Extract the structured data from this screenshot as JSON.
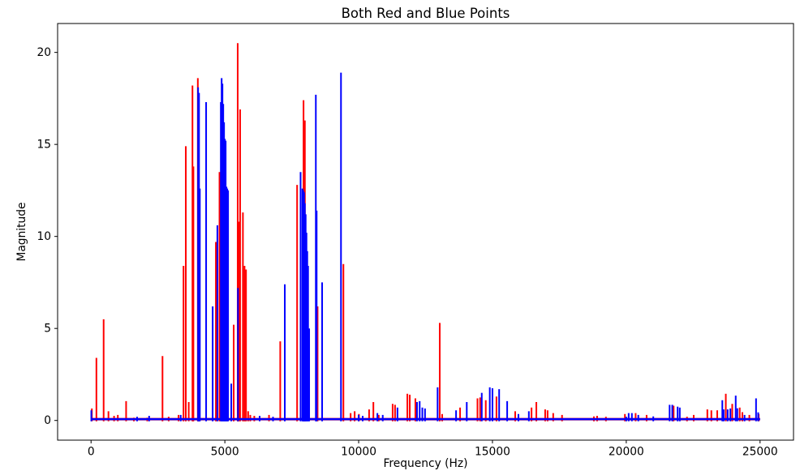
{
  "chart_data": {
    "type": "line",
    "title": "Both Red and Blue Points",
    "xlabel": "Frequency (Hz)",
    "ylabel": "Magnitude",
    "xlim": [
      -1250,
      26250
    ],
    "ylim": [
      -1.07,
      21.57
    ],
    "xticks": [
      0,
      5000,
      10000,
      15000,
      20000,
      25000
    ],
    "yticks": [
      0,
      5,
      10,
      15,
      20
    ],
    "grid": false,
    "legend": null,
    "series": [
      {
        "name": "red",
        "color": "#ff0000",
        "baseline_x": [
          0,
          25000
        ],
        "baseline_mag": 0.07,
        "points": [
          [
            30,
            0.65
          ],
          [
            200,
            3.4
          ],
          [
            470,
            5.5
          ],
          [
            650,
            0.5
          ],
          [
            860,
            0.25
          ],
          [
            1000,
            0.3
          ],
          [
            1310,
            1.05
          ],
          [
            1600,
            0.15
          ],
          [
            2100,
            0.15
          ],
          [
            2670,
            3.5
          ],
          [
            2900,
            0.2
          ],
          [
            3270,
            0.3
          ],
          [
            3455,
            8.4
          ],
          [
            3540,
            14.9
          ],
          [
            3650,
            1.0
          ],
          [
            3790,
            18.2
          ],
          [
            3825,
            13.8
          ],
          [
            3990,
            18.6
          ],
          [
            4020,
            16.4
          ],
          [
            4665,
            9.7
          ],
          [
            4800,
            13.5
          ],
          [
            5330,
            5.2
          ],
          [
            5480,
            20.5
          ],
          [
            5515,
            10.8
          ],
          [
            5570,
            16.9
          ],
          [
            5675,
            11.3
          ],
          [
            5735,
            8.4
          ],
          [
            5790,
            8.2
          ],
          [
            5870,
            0.5
          ],
          [
            5950,
            0.3
          ],
          [
            6100,
            0.25
          ],
          [
            6650,
            0.3
          ],
          [
            7070,
            4.3
          ],
          [
            7700,
            12.8
          ],
          [
            7940,
            17.4
          ],
          [
            7990,
            16.3
          ],
          [
            8465,
            6.2
          ],
          [
            9430,
            8.5
          ],
          [
            9700,
            0.4
          ],
          [
            9850,
            0.5
          ],
          [
            10010,
            0.35
          ],
          [
            10390,
            0.6
          ],
          [
            10550,
            1.0
          ],
          [
            10750,
            0.3
          ],
          [
            11270,
            0.9
          ],
          [
            11360,
            0.85
          ],
          [
            11820,
            1.45
          ],
          [
            11910,
            1.4
          ],
          [
            12120,
            1.2
          ],
          [
            13030,
            5.3
          ],
          [
            13120,
            0.35
          ],
          [
            13790,
            0.7
          ],
          [
            14440,
            1.2
          ],
          [
            14540,
            1.25
          ],
          [
            14750,
            1.1
          ],
          [
            15150,
            1.3
          ],
          [
            15850,
            0.5
          ],
          [
            16460,
            0.7
          ],
          [
            16640,
            1.0
          ],
          [
            16970,
            0.6
          ],
          [
            17060,
            0.55
          ],
          [
            17270,
            0.4
          ],
          [
            17600,
            0.3
          ],
          [
            18790,
            0.22
          ],
          [
            18910,
            0.25
          ],
          [
            19240,
            0.2
          ],
          [
            19950,
            0.35
          ],
          [
            20350,
            0.4
          ],
          [
            20760,
            0.3
          ],
          [
            21770,
            0.8
          ],
          [
            22270,
            0.2
          ],
          [
            22520,
            0.3
          ],
          [
            23030,
            0.6
          ],
          [
            23180,
            0.55
          ],
          [
            23400,
            0.55
          ],
          [
            23720,
            1.45
          ],
          [
            23960,
            0.9
          ],
          [
            24240,
            0.7
          ],
          [
            24340,
            0.45
          ],
          [
            24600,
            0.3
          ],
          [
            24950,
            0.35
          ]
        ]
      },
      {
        "name": "blue",
        "color": "#0000ff",
        "baseline_x": [
          0,
          25000
        ],
        "baseline_mag": 0.07,
        "points": [
          [
            10,
            0.55
          ],
          [
            1720,
            0.2
          ],
          [
            2170,
            0.25
          ],
          [
            3350,
            0.3
          ],
          [
            4000,
            18.1
          ],
          [
            4035,
            17.8
          ],
          [
            4065,
            12.6
          ],
          [
            4300,
            17.3
          ],
          [
            4545,
            6.2
          ],
          [
            4720,
            10.6
          ],
          [
            4850,
            17.3
          ],
          [
            4880,
            18.6
          ],
          [
            4910,
            18.3
          ],
          [
            4940,
            17.2
          ],
          [
            4970,
            16.2
          ],
          [
            5000,
            15.3
          ],
          [
            5030,
            15.2
          ],
          [
            5060,
            12.7
          ],
          [
            5090,
            12.6
          ],
          [
            5120,
            12.5
          ],
          [
            5240,
            2.0
          ],
          [
            5490,
            7.2
          ],
          [
            6300,
            0.25
          ],
          [
            6800,
            0.2
          ],
          [
            7240,
            7.4
          ],
          [
            7830,
            13.5
          ],
          [
            7900,
            12.6
          ],
          [
            7930,
            12.5
          ],
          [
            7960,
            12.4
          ],
          [
            7990,
            11.8
          ],
          [
            8020,
            11.2
          ],
          [
            8050,
            10.2
          ],
          [
            8080,
            9.2
          ],
          [
            8110,
            8.4
          ],
          [
            8150,
            5.0
          ],
          [
            8400,
            17.7
          ],
          [
            8430,
            11.4
          ],
          [
            8635,
            7.5
          ],
          [
            9340,
            18.9
          ],
          [
            10000,
            0.3
          ],
          [
            10150,
            0.25
          ],
          [
            10700,
            0.4
          ],
          [
            10900,
            0.3
          ],
          [
            11450,
            0.7
          ],
          [
            12180,
            1.0
          ],
          [
            12280,
            1.05
          ],
          [
            12380,
            0.7
          ],
          [
            12480,
            0.65
          ],
          [
            12950,
            1.8
          ],
          [
            13640,
            0.55
          ],
          [
            14040,
            1.0
          ],
          [
            14600,
            1.5
          ],
          [
            14900,
            1.8
          ],
          [
            15000,
            1.75
          ],
          [
            15250,
            1.7
          ],
          [
            15550,
            1.05
          ],
          [
            15970,
            0.35
          ],
          [
            16360,
            0.5
          ],
          [
            20000,
            0.2
          ],
          [
            20090,
            0.4
          ],
          [
            20210,
            0.4
          ],
          [
            20450,
            0.3
          ],
          [
            21010,
            0.22
          ],
          [
            21620,
            0.85
          ],
          [
            21720,
            0.85
          ],
          [
            21920,
            0.75
          ],
          [
            22000,
            0.7
          ],
          [
            23590,
            1.1
          ],
          [
            23640,
            0.6
          ],
          [
            23790,
            0.6
          ],
          [
            23890,
            0.65
          ],
          [
            24090,
            1.35
          ],
          [
            24150,
            0.66
          ],
          [
            24420,
            0.3
          ],
          [
            24850,
            1.2
          ],
          [
            24930,
            0.44
          ]
        ]
      }
    ]
  }
}
